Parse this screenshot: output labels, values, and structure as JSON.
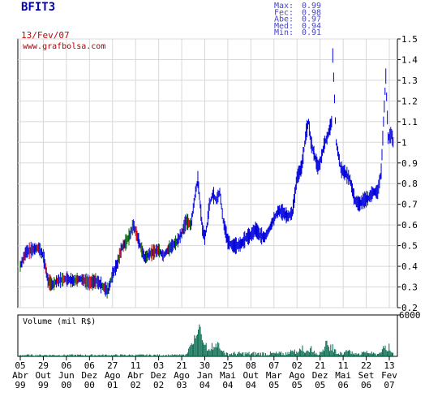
{
  "ticker": "BFIT3",
  "date": "13/Fev/07",
  "stats": [
    {
      "label": "Max:",
      "value": "0.99"
    },
    {
      "label": "Fec:",
      "value": "0.98"
    },
    {
      "label": "Abe:",
      "value": "0.97"
    },
    {
      "label": "Med:",
      "value": "0.94"
    },
    {
      "label": "Min:",
      "value": "0.91"
    }
  ],
  "watermark": "www.grafbolsa.com",
  "volume_label": "Volume (mil R$)",
  "colors": {
    "price_up": "#0000dd",
    "price_down": "#dd0000",
    "price_neutral": "#006600",
    "volume": "#00664a",
    "ticker": "#0000aa",
    "stats": "#4444cc",
    "date": "#cc0000",
    "watermark": "#aa0000",
    "grid": "#d8d8d8",
    "frame": "#000000"
  },
  "chart_data": [
    {
      "type": "line",
      "name": "price",
      "ylim": [
        0.2,
        1.5
      ],
      "yticks": [
        "0.2",
        "0.3",
        "0.4",
        "0.5",
        "0.6",
        "0.7",
        "0.8",
        "0.9",
        "1",
        "1.1",
        "1.2",
        "1.3",
        "1.4",
        "1.5"
      ],
      "x_labels": [
        {
          "day": "05",
          "mon": "Abr",
          "yr": "99"
        },
        {
          "day": "29",
          "mon": "Out",
          "yr": "99"
        },
        {
          "day": "06",
          "mon": "Jun",
          "yr": "00"
        },
        {
          "day": "06",
          "mon": "Dez",
          "yr": "00"
        },
        {
          "day": "27",
          "mon": "Ago",
          "yr": "01"
        },
        {
          "day": "11",
          "mon": "Abr",
          "yr": "02"
        },
        {
          "day": "03",
          "mon": "Dez",
          "yr": "02"
        },
        {
          "day": "21",
          "mon": "Ago",
          "yr": "03"
        },
        {
          "day": "30",
          "mon": "Jan",
          "yr": "04"
        },
        {
          "day": "25",
          "mon": "Mai",
          "yr": "04"
        },
        {
          "day": "08",
          "mon": "Out",
          "yr": "04"
        },
        {
          "day": "07",
          "mon": "Mar",
          "yr": "05"
        },
        {
          "day": "02",
          "mon": "Ago",
          "yr": "05"
        },
        {
          "day": "21",
          "mon": "Dez",
          "yr": "05"
        },
        {
          "day": "11",
          "mon": "Mai",
          "yr": "06"
        },
        {
          "day": "22",
          "mon": "Set",
          "yr": "06"
        },
        {
          "day": "13",
          "mon": "Fev",
          "yr": "07"
        }
      ],
      "points": [
        [
          0,
          0.4
        ],
        [
          0.25,
          0.47
        ],
        [
          0.5,
          0.48
        ],
        [
          0.8,
          0.49
        ],
        [
          1.0,
          0.45
        ],
        [
          1.2,
          0.33
        ],
        [
          1.4,
          0.31
        ],
        [
          1.6,
          0.33
        ],
        [
          2.0,
          0.34
        ],
        [
          2.3,
          0.33
        ],
        [
          2.6,
          0.34
        ],
        [
          3.0,
          0.32
        ],
        [
          3.3,
          0.33
        ],
        [
          3.6,
          0.3
        ],
        [
          3.8,
          0.28
        ],
        [
          4.0,
          0.36
        ],
        [
          4.2,
          0.41
        ],
        [
          4.4,
          0.49
        ],
        [
          4.6,
          0.52
        ],
        [
          4.75,
          0.55
        ],
        [
          4.9,
          0.6
        ],
        [
          5.0,
          0.57
        ],
        [
          5.2,
          0.5
        ],
        [
          5.4,
          0.44
        ],
        [
          5.6,
          0.46
        ],
        [
          5.8,
          0.47
        ],
        [
          6.0,
          0.48
        ],
        [
          6.2,
          0.45
        ],
        [
          6.4,
          0.48
        ],
        [
          6.6,
          0.5
        ],
        [
          6.8,
          0.52
        ],
        [
          7.0,
          0.56
        ],
        [
          7.2,
          0.62
        ],
        [
          7.4,
          0.6
        ],
        [
          7.5,
          0.68
        ],
        [
          7.6,
          0.76
        ],
        [
          7.7,
          0.82
        ],
        [
          7.8,
          0.7
        ],
        [
          7.9,
          0.58
        ],
        [
          8.0,
          0.54
        ],
        [
          8.1,
          0.6
        ],
        [
          8.2,
          0.7
        ],
        [
          8.35,
          0.75
        ],
        [
          8.5,
          0.72
        ],
        [
          8.65,
          0.76
        ],
        [
          8.8,
          0.62
        ],
        [
          9.0,
          0.52
        ],
        [
          9.2,
          0.5
        ],
        [
          9.4,
          0.5
        ],
        [
          9.6,
          0.51
        ],
        [
          9.8,
          0.54
        ],
        [
          10.0,
          0.55
        ],
        [
          10.2,
          0.58
        ],
        [
          10.4,
          0.55
        ],
        [
          10.6,
          0.54
        ],
        [
          10.8,
          0.58
        ],
        [
          11.0,
          0.63
        ],
        [
          11.2,
          0.67
        ],
        [
          11.4,
          0.66
        ],
        [
          11.6,
          0.64
        ],
        [
          11.8,
          0.66
        ],
        [
          12.0,
          0.83
        ],
        [
          12.2,
          0.88
        ],
        [
          12.4,
          1.05
        ],
        [
          12.5,
          1.1
        ],
        [
          12.6,
          1.0
        ],
        [
          12.8,
          0.92
        ],
        [
          12.9,
          0.88
        ],
        [
          13.0,
          0.9
        ],
        [
          13.2,
          1.0
        ],
        [
          13.3,
          1.02
        ],
        [
          13.5,
          1.1
        ],
        [
          13.55,
          1.42
        ],
        [
          13.7,
          1.0
        ],
        [
          13.9,
          0.87
        ],
        [
          14.1,
          0.85
        ],
        [
          14.3,
          0.82
        ],
        [
          14.5,
          0.72
        ],
        [
          14.7,
          0.7
        ],
        [
          14.9,
          0.72
        ],
        [
          15.1,
          0.73
        ],
        [
          15.3,
          0.76
        ],
        [
          15.5,
          0.76
        ],
        [
          15.65,
          0.86
        ],
        [
          15.75,
          1.1
        ],
        [
          15.85,
          1.32
        ],
        [
          15.95,
          1.02
        ],
        [
          16.1,
          1.04
        ],
        [
          16.2,
          0.98
        ]
      ]
    },
    {
      "type": "bar",
      "name": "volume",
      "ylim": [
        0,
        6000
      ],
      "yticks": [
        "6000"
      ],
      "bursts": [
        {
          "x": 7.45,
          "value": 2400
        },
        {
          "x": 7.6,
          "value": 3500
        },
        {
          "x": 7.7,
          "value": 6000
        },
        {
          "x": 7.8,
          "value": 4700
        },
        {
          "x": 8.0,
          "value": 2600
        },
        {
          "x": 8.3,
          "value": 2200
        },
        {
          "x": 8.6,
          "value": 2800
        },
        {
          "x": 11.8,
          "value": 1500
        },
        {
          "x": 12.2,
          "value": 1900
        },
        {
          "x": 12.6,
          "value": 1600
        },
        {
          "x": 13.3,
          "value": 2900
        },
        {
          "x": 13.5,
          "value": 2100
        },
        {
          "x": 14.2,
          "value": 1300
        },
        {
          "x": 15.0,
          "value": 1200
        },
        {
          "x": 15.8,
          "value": 2200
        },
        {
          "x": 16.0,
          "value": 1900
        }
      ]
    }
  ]
}
